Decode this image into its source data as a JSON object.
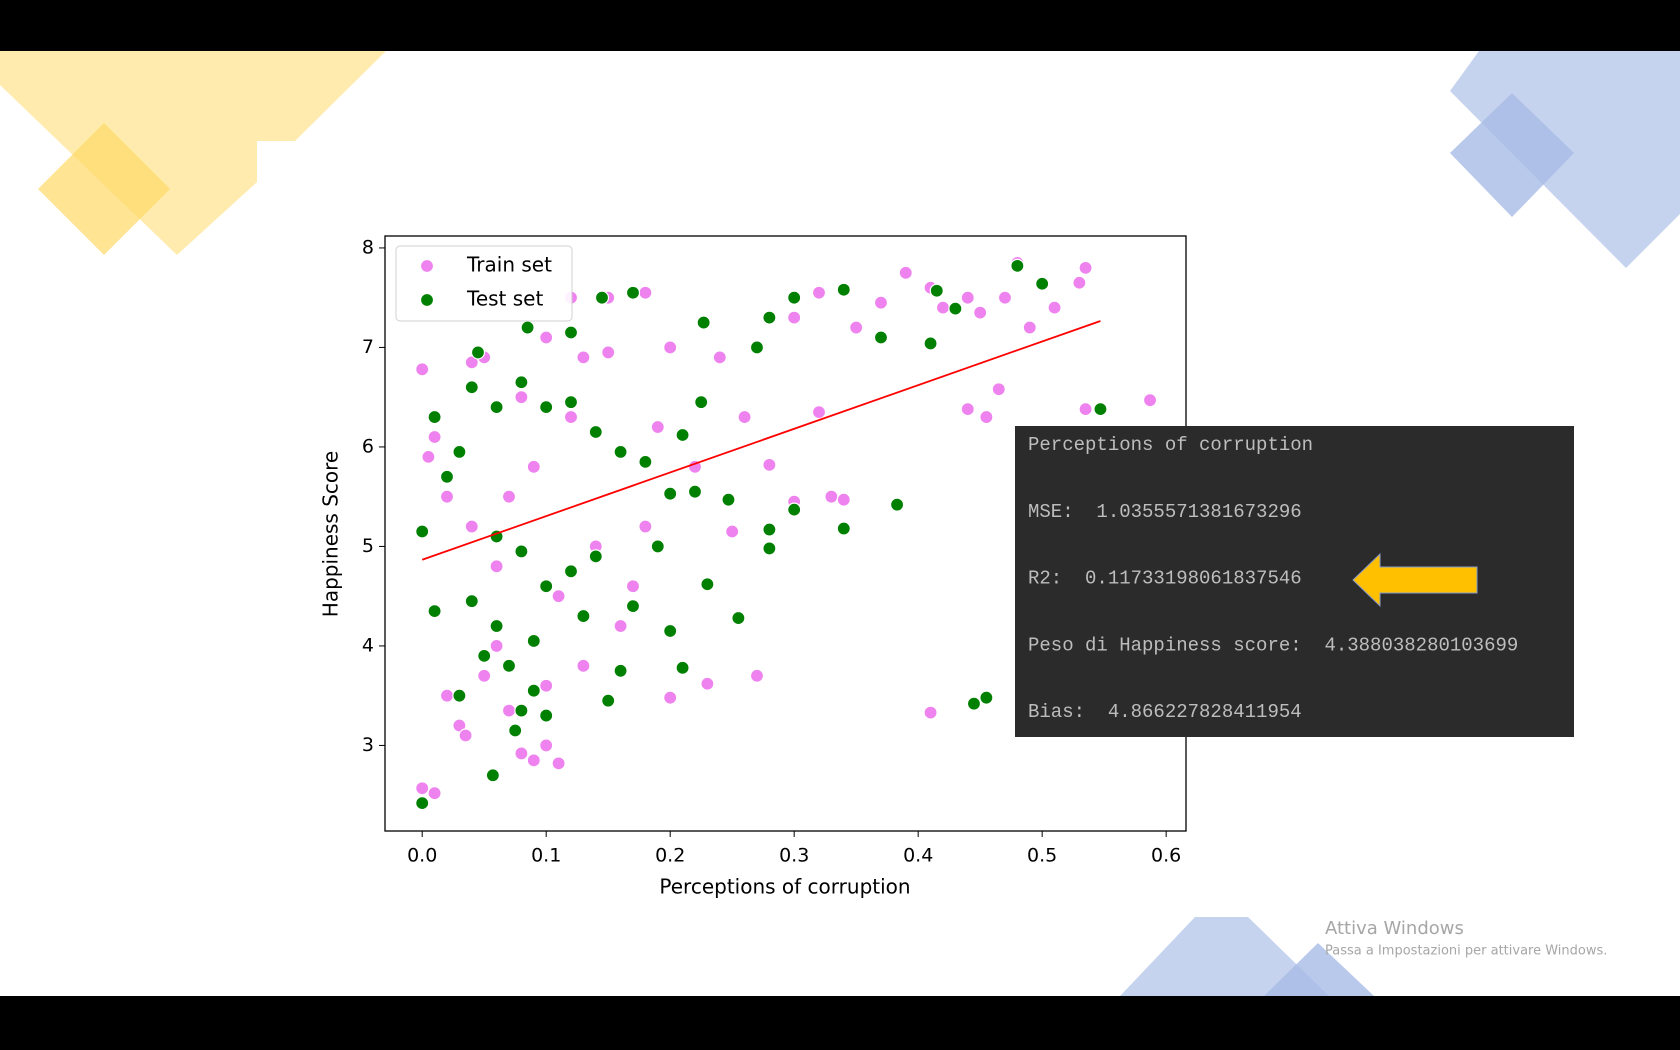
{
  "chart_data": {
    "type": "scatter",
    "xlabel": "Perceptions of corruption",
    "ylabel": "Happiness Score",
    "xlim": [
      -0.03,
      0.616
    ],
    "ylim": [
      2.14,
      8.12
    ],
    "xticks": [
      {
        "value": 0,
        "label": "0.0"
      },
      0.1,
      0.2,
      0.3,
      0.4,
      0.5,
      0.6
    ],
    "yticks": [
      3,
      4,
      5,
      6,
      7,
      8
    ],
    "grid": false,
    "legend": "upper left",
    "series": [
      {
        "name": "Train set",
        "color": "#ee82ee",
        "x": [
          0.0,
          0.0,
          0.01,
          0.005,
          0.01,
          0.02,
          0.02,
          0.03,
          0.035,
          0.04,
          0.05,
          0.06,
          0.07,
          0.08,
          0.09,
          0.1,
          0.11,
          0.1,
          0.12,
          0.13,
          0.15,
          0.15,
          0.18,
          0.2,
          0.2,
          0.23,
          0.27,
          0.28,
          0.25,
          0.26,
          0.3,
          0.32,
          0.33,
          0.34,
          0.3,
          0.32,
          0.35,
          0.37,
          0.39,
          0.41,
          0.42,
          0.44,
          0.45,
          0.47,
          0.48,
          0.49,
          0.51,
          0.53,
          0.535,
          0.535,
          0.587,
          0.44,
          0.455,
          0.465,
          0.41,
          0.07,
          0.09,
          0.12,
          0.14,
          0.16,
          0.06,
          0.04,
          0.08,
          0.18,
          0.22,
          0.11,
          0.13,
          0.17,
          0.19,
          0.24,
          0.05,
          0.1
        ],
        "values": [
          6.78,
          2.57,
          2.52,
          5.9,
          6.1,
          5.5,
          3.5,
          3.2,
          3.1,
          6.85,
          6.9,
          4.0,
          3.35,
          2.92,
          2.85,
          3.0,
          2.82,
          7.1,
          7.5,
          6.9,
          6.95,
          7.5,
          7.55,
          7.0,
          3.48,
          3.62,
          3.7,
          5.82,
          5.15,
          6.3,
          5.45,
          6.35,
          5.5,
          5.47,
          7.3,
          7.55,
          7.2,
          7.45,
          7.75,
          7.6,
          7.4,
          7.5,
          7.35,
          7.5,
          7.85,
          7.2,
          7.4,
          7.65,
          7.8,
          6.38,
          6.47,
          6.38,
          6.3,
          6.58,
          3.33,
          5.5,
          5.8,
          6.3,
          5.0,
          4.2,
          4.8,
          5.2,
          6.5,
          5.2,
          5.8,
          4.5,
          3.8,
          4.6,
          6.2,
          6.9,
          3.7,
          3.6
        ]
      },
      {
        "name": "Test set",
        "color": "#008000",
        "x": [
          0.0,
          0.057,
          0.075,
          0.08,
          0.1,
          0.03,
          0.09,
          0.15,
          0.16,
          0.21,
          0.2,
          0.255,
          0.23,
          0.445,
          0.455,
          0.28,
          0.28,
          0.3,
          0.34,
          0.383,
          0.247,
          0.22,
          0.547,
          0.41,
          0.48,
          0.5,
          0.415,
          0.43,
          0.34,
          0.37,
          0.3,
          0.28,
          0.27,
          0.2,
          0.21,
          0.225,
          0.227,
          0.17,
          0.145,
          0.12,
          0.085,
          0.045,
          0.04,
          0.01,
          0.0,
          0.02,
          0.03,
          0.06,
          0.08,
          0.1,
          0.12,
          0.14,
          0.16,
          0.18,
          0.06,
          0.08,
          0.1,
          0.12,
          0.04,
          0.06,
          0.09,
          0.13,
          0.14,
          0.17,
          0.01,
          0.05,
          0.07,
          0.19
        ],
        "values": [
          2.42,
          2.7,
          3.15,
          3.35,
          3.3,
          3.5,
          3.55,
          3.45,
          3.75,
          3.78,
          4.15,
          4.28,
          4.62,
          3.42,
          3.48,
          5.17,
          4.98,
          5.37,
          5.18,
          5.42,
          5.47,
          5.55,
          6.38,
          7.04,
          7.82,
          7.64,
          7.57,
          7.39,
          7.58,
          7.1,
          7.5,
          7.3,
          7.0,
          5.53,
          6.12,
          6.45,
          7.25,
          7.55,
          7.5,
          7.15,
          7.2,
          6.95,
          6.6,
          6.3,
          5.15,
          5.7,
          5.95,
          6.4,
          6.65,
          6.4,
          6.45,
          6.15,
          5.95,
          5.85,
          5.1,
          4.95,
          4.6,
          4.75,
          4.45,
          4.2,
          4.05,
          4.3,
          4.9,
          4.4,
          4.35,
          3.9,
          3.8,
          5.0
        ]
      }
    ],
    "fit_line": {
      "color": "#ff0000",
      "x": [
        0,
        0.547
      ],
      "values": [
        4.866,
        7.266
      ]
    }
  },
  "console": {
    "lines": [
      "Perceptions of corruption",
      "MSE:  1.0355571381673296",
      "R2:  0.11733198061837546",
      "Peso di Happiness score:  4.388038280103699",
      "Bias:  4.866227828411954"
    ]
  },
  "watermark": {
    "title": "Attiva Windows",
    "subtitle": "Passa a Impostazioni per attivare Windows."
  }
}
